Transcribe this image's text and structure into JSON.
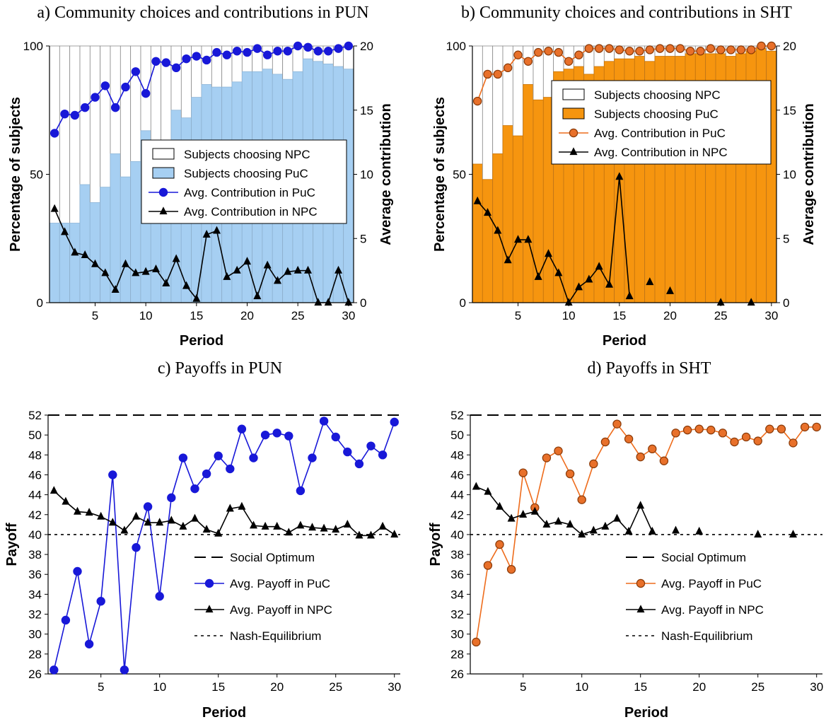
{
  "colors": {
    "blue_fill": "#a6cff2",
    "blue_line": "#1818d8",
    "orange_fill": "#f6950f",
    "orange_line": "#ee6c1c",
    "orange_marker": "#e8702a",
    "orange_marker_edge": "#8a3a08",
    "black": "#000000"
  },
  "chart_data": [
    {
      "id": "a",
      "type": "bar+line",
      "title": "a) Community choices and contributions in PUN",
      "xlabel": "Period",
      "ylabel": "Percentage of subjects",
      "y2label": "Average contribution",
      "xlim": [
        0.5,
        30.5
      ],
      "ylim": [
        0,
        100
      ],
      "y2lim": [
        0,
        20
      ],
      "xticks": [
        5,
        10,
        15,
        20,
        25,
        30
      ],
      "yticks": [
        0,
        50,
        100
      ],
      "y2ticks": [
        0,
        5,
        10,
        15,
        20
      ],
      "legend_position": "center-right",
      "x": [
        1,
        2,
        3,
        4,
        5,
        6,
        7,
        8,
        9,
        10,
        11,
        12,
        13,
        14,
        15,
        16,
        17,
        18,
        19,
        20,
        21,
        22,
        23,
        24,
        25,
        26,
        27,
        28,
        29,
        30
      ],
      "series": [
        {
          "name": "Subjects choosing NPC",
          "kind": "bar_top",
          "axis": "left"
        },
        {
          "name": "Subjects choosing PuC",
          "kind": "bar",
          "axis": "left",
          "values": [
            31,
            31,
            31,
            46,
            39,
            45,
            58,
            49,
            55,
            67,
            61,
            62,
            75,
            72,
            80,
            85,
            84,
            84,
            86,
            90,
            90,
            91,
            89,
            87,
            90,
            95,
            94,
            93,
            92,
            91
          ]
        },
        {
          "name": "Avg. Contribution in PuC",
          "kind": "line_circle",
          "axis": "right",
          "values": [
            13.2,
            14.7,
            14.6,
            15.2,
            16.0,
            16.9,
            15.2,
            16.8,
            18.0,
            16.3,
            18.8,
            18.7,
            18.3,
            19.0,
            19.2,
            18.9,
            19.5,
            19.3,
            19.6,
            19.5,
            19.8,
            19.3,
            19.6,
            19.6,
            20.0,
            19.9,
            19.6,
            19.6,
            19.8,
            20.0
          ]
        },
        {
          "name": "Avg. Contribution in NPC",
          "kind": "line_triangle",
          "axis": "right",
          "values": [
            7.3,
            5.5,
            3.9,
            3.7,
            3.0,
            2.3,
            1.0,
            3.0,
            2.3,
            2.4,
            2.6,
            1.5,
            3.4,
            1.3,
            0.3,
            5.3,
            5.6,
            2.0,
            2.5,
            3.2,
            0.5,
            2.9,
            1.7,
            2.4,
            2.5,
            2.5,
            0.0,
            0.0,
            2.5,
            0.0
          ]
        }
      ]
    },
    {
      "id": "b",
      "type": "bar+line",
      "title": "b) Community choices and contributions in SHT",
      "xlabel": "Period",
      "ylabel": "Percentage of subjects",
      "y2label": "Average contribution",
      "xlim": [
        0.5,
        30.5
      ],
      "ylim": [
        0,
        100
      ],
      "y2lim": [
        0,
        20
      ],
      "xticks": [
        5,
        10,
        15,
        20,
        25,
        30
      ],
      "yticks": [
        0,
        50,
        100
      ],
      "y2ticks": [
        0,
        5,
        10,
        15,
        20
      ],
      "legend_position": "top-right",
      "x": [
        1,
        2,
        3,
        4,
        5,
        6,
        7,
        8,
        9,
        10,
        11,
        12,
        13,
        14,
        15,
        16,
        17,
        18,
        19,
        20,
        21,
        22,
        23,
        24,
        25,
        26,
        27,
        28,
        29,
        30
      ],
      "series": [
        {
          "name": "Subjects choosing NPC",
          "kind": "bar_top",
          "axis": "left"
        },
        {
          "name": "Subjects choosing PuC",
          "kind": "bar",
          "axis": "left",
          "values": [
            54,
            48,
            58,
            69,
            65,
            85,
            79,
            80,
            90,
            91,
            92,
            89,
            92,
            94,
            95,
            95,
            96,
            94,
            96,
            96,
            96,
            97,
            97,
            97,
            97,
            96,
            97,
            98,
            99,
            98
          ]
        },
        {
          "name": "Avg. Contribution in PuC",
          "kind": "line_circle",
          "axis": "right",
          "values": [
            15.7,
            17.8,
            17.8,
            18.3,
            19.3,
            18.8,
            19.5,
            19.6,
            19.5,
            18.8,
            19.3,
            19.8,
            19.8,
            19.8,
            19.7,
            19.6,
            19.6,
            19.7,
            19.8,
            19.8,
            19.8,
            19.6,
            19.6,
            19.8,
            19.7,
            19.7,
            19.7,
            19.7,
            20.0,
            20.0
          ]
        },
        {
          "name": "Avg. Contribution in NPC",
          "kind": "line_triangle",
          "axis": "right",
          "values": [
            7.9,
            7.0,
            5.6,
            3.3,
            4.9,
            4.9,
            2.0,
            3.8,
            2.3,
            0.0,
            1.2,
            1.8,
            2.8,
            1.4,
            9.8,
            0.5,
            null,
            1.6,
            null,
            0.9,
            null,
            null,
            null,
            null,
            0.0,
            null,
            null,
            0.0,
            null,
            null
          ]
        }
      ]
    },
    {
      "id": "c",
      "type": "line",
      "title": "c) Payoffs in PUN",
      "xlabel": "Period",
      "ylabel": "Payoff",
      "xlim": [
        0.5,
        30.5
      ],
      "ylim": [
        26,
        52
      ],
      "xticks": [
        5,
        10,
        15,
        20,
        25,
        30
      ],
      "yticks": [
        26,
        28,
        30,
        32,
        34,
        36,
        38,
        40,
        42,
        44,
        46,
        48,
        50,
        52
      ],
      "legend_position": "center-right",
      "x": [
        1,
        2,
        3,
        4,
        5,
        6,
        7,
        8,
        9,
        10,
        11,
        12,
        13,
        14,
        15,
        16,
        17,
        18,
        19,
        20,
        21,
        22,
        23,
        24,
        25,
        26,
        27,
        28,
        29,
        30
      ],
      "series": [
        {
          "name": "Social Optimum",
          "kind": "hline_dashed",
          "value": 52
        },
        {
          "name": "Avg. Payoff in PuC",
          "kind": "line_circle",
          "values": [
            26.4,
            31.4,
            36.3,
            29.0,
            33.3,
            46.0,
            26.4,
            38.7,
            42.8,
            33.8,
            43.7,
            47.7,
            44.6,
            46.1,
            47.9,
            46.6,
            50.6,
            47.7,
            50.0,
            50.2,
            49.9,
            44.4,
            47.7,
            51.4,
            49.8,
            48.3,
            47.1,
            48.9,
            48.0,
            51.3
          ]
        },
        {
          "name": "Avg. Payoff in NPC",
          "kind": "line_triangle",
          "values": [
            44.4,
            43.3,
            42.3,
            42.2,
            41.8,
            41.2,
            40.4,
            41.8,
            41.2,
            41.2,
            41.4,
            40.8,
            41.6,
            40.5,
            40.1,
            42.6,
            42.8,
            40.9,
            40.8,
            40.8,
            40.2,
            40.9,
            40.7,
            40.6,
            40.5,
            41.0,
            39.9,
            39.9,
            40.8,
            40.0
          ]
        },
        {
          "name": "Nash-Equilibrium",
          "kind": "hline_dotted",
          "value": 40
        }
      ]
    },
    {
      "id": "d",
      "type": "line",
      "title": "d) Payoffs in SHT",
      "xlabel": "Period",
      "ylabel": "Payoff",
      "xlim": [
        0.5,
        30.5
      ],
      "ylim": [
        26,
        52
      ],
      "xticks": [
        5,
        10,
        15,
        20,
        25,
        30
      ],
      "yticks": [
        26,
        28,
        30,
        32,
        34,
        36,
        38,
        40,
        42,
        44,
        46,
        48,
        50,
        52
      ],
      "legend_position": "bottom-right",
      "x": [
        1,
        2,
        3,
        4,
        5,
        6,
        7,
        8,
        9,
        10,
        11,
        12,
        13,
        14,
        15,
        16,
        17,
        18,
        19,
        20,
        21,
        22,
        23,
        24,
        25,
        26,
        27,
        28,
        29,
        30
      ],
      "series": [
        {
          "name": "Social Optimum",
          "kind": "hline_dashed",
          "value": 52
        },
        {
          "name": "Avg. Payoff in PuC",
          "kind": "line_circle",
          "values": [
            29.2,
            36.9,
            39.0,
            36.5,
            46.2,
            42.7,
            47.7,
            48.4,
            46.1,
            43.5,
            47.1,
            49.3,
            51.1,
            49.6,
            47.8,
            48.6,
            47.4,
            50.2,
            50.5,
            50.6,
            50.5,
            50.2,
            49.3,
            49.8,
            49.4,
            50.6,
            50.6,
            49.2,
            50.8,
            50.8
          ]
        },
        {
          "name": "Avg. Payoff in NPC",
          "kind": "line_triangle",
          "values": [
            44.8,
            44.3,
            42.8,
            41.6,
            42.0,
            42.3,
            41.0,
            41.3,
            41.0,
            40.0,
            40.4,
            40.8,
            41.6,
            40.3,
            42.9,
            40.3,
            null,
            40.4,
            null,
            40.3,
            null,
            null,
            null,
            null,
            40.0,
            null,
            null,
            40.0,
            null,
            null
          ]
        },
        {
          "name": "Nash-Equilibrium",
          "kind": "hline_dotted",
          "value": 40
        }
      ]
    }
  ]
}
